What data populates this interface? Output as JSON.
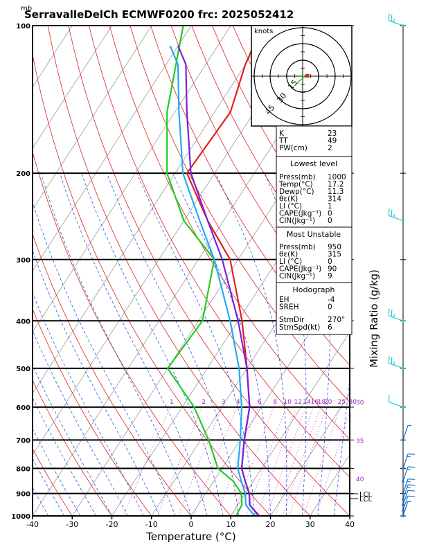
{
  "header": {
    "unit_label": "mb",
    "title": "SerravalleDelCh ECMWF0200 frc: 2025052412"
  },
  "hodograph": {
    "unit_label": "knots",
    "ring_labels": [
      "15",
      "30",
      "45"
    ]
  },
  "indices_box": {
    "rows": [
      {
        "label": "K",
        "value": "23"
      },
      {
        "label": "TT",
        "value": "49"
      },
      {
        "label": "PW(cm)",
        "value": "2"
      }
    ]
  },
  "lowest_level": {
    "heading": "Lowest level",
    "rows": [
      {
        "label": "Press(mb)",
        "value": "1000"
      },
      {
        "label": "Temp(°C)",
        "value": "17.2"
      },
      {
        "label": "Dewp(°C)",
        "value": "11.3"
      },
      {
        "label": "θε(K)",
        "value": "314"
      },
      {
        "label": "LI (°C)",
        "value": "1"
      },
      {
        "label": "CAPE(Jkg⁻¹)",
        "value": "0"
      },
      {
        "label": "CIN(Jkg⁻¹)",
        "value": "0"
      }
    ]
  },
  "most_unstable": {
    "heading": "Most Unstable",
    "rows": [
      {
        "label": "Press(mb)",
        "value": "950"
      },
      {
        "label": "θε(K)",
        "value": "315"
      },
      {
        "label": "LI (°C)",
        "value": "0"
      },
      {
        "label": "CAPE(Jkg⁻¹)",
        "value": "90"
      },
      {
        "label": "CIN(Jkg⁻¹)",
        "value": "9"
      }
    ]
  },
  "hodograph_box": {
    "heading": "Hodograph",
    "rows": [
      {
        "label": "EH",
        "value": "-4"
      },
      {
        "label": "SREH",
        "value": "0"
      },
      {
        "label": "StmDir",
        "value": "270°"
      },
      {
        "label": "StmSpd(kt)",
        "value": "6"
      }
    ]
  },
  "right_axis": {
    "label": "Mixing Ratio (g/kg)",
    "level_labels": [
      "LCL",
      "LCL"
    ],
    "theta_labels": [
      "30",
      "35",
      "40"
    ]
  },
  "chart_data": {
    "type": "line",
    "title": "SerravalleDelCh ECMWF0200 frc: 2025052412",
    "xlabel": "Temperature (°C)",
    "ylabel": "mb",
    "xlim": [
      -40,
      40
    ],
    "ylim": [
      1000,
      100
    ],
    "y_scale": "log",
    "x_ticks": [
      -40,
      -30,
      -20,
      -10,
      0,
      10,
      20,
      30,
      40
    ],
    "y_ticks": [
      100,
      200,
      300,
      400,
      500,
      600,
      700,
      800,
      900,
      1000
    ],
    "mixing_ratio_labels": [
      "1",
      "2",
      "3",
      "4",
      "6",
      "8",
      "10",
      "12",
      "14",
      "16",
      "18",
      "20",
      "25",
      "30"
    ],
    "series": [
      {
        "name": "",
        "color": "#e02020",
        "points": [
          [
            17.2,
            1000
          ],
          [
            13,
            950
          ],
          [
            11,
            900
          ],
          [
            8,
            850
          ],
          [
            5,
            800
          ],
          [
            1,
            700
          ],
          [
            -3,
            600
          ],
          [
            -10,
            500
          ],
          [
            -19,
            400
          ],
          [
            -32,
            300
          ],
          [
            -44,
            250
          ],
          [
            -57,
            200
          ],
          [
            -56,
            150
          ],
          [
            -60,
            120
          ],
          [
            -62,
            100
          ]
        ]
      },
      {
        "name": "",
        "color": "#22cc22",
        "points": [
          [
            11.3,
            1000
          ],
          [
            11,
            950
          ],
          [
            9,
            900
          ],
          [
            5,
            850
          ],
          [
            -1,
            800
          ],
          [
            -8,
            700
          ],
          [
            -17,
            600
          ],
          [
            -30,
            500
          ],
          [
            -29,
            400
          ],
          [
            -36,
            300
          ],
          [
            -50,
            250
          ],
          [
            -62,
            200
          ],
          [
            -72,
            150
          ],
          [
            -82,
            100
          ]
        ]
      },
      {
        "name": "",
        "color": "#7722dd",
        "points": [
          [
            17,
            1000
          ],
          [
            13,
            950
          ],
          [
            11,
            900
          ],
          [
            8,
            850
          ],
          [
            5,
            800
          ],
          [
            1,
            700
          ],
          [
            -3,
            600
          ],
          [
            -10,
            500
          ],
          [
            -20,
            400
          ],
          [
            -34,
            300
          ],
          [
            -44,
            250
          ],
          [
            -56,
            200
          ],
          [
            -67,
            150
          ],
          [
            -75,
            120
          ],
          [
            -80,
            110
          ]
        ]
      },
      {
        "name": "",
        "color": "#22aaee",
        "points": [
          [
            16,
            1000
          ],
          [
            12,
            950
          ],
          [
            10,
            900
          ],
          [
            7,
            850
          ],
          [
            4,
            800
          ],
          [
            0,
            700
          ],
          [
            -5,
            600
          ],
          [
            -12,
            500
          ],
          [
            -22,
            400
          ],
          [
            -36,
            300
          ],
          [
            -46,
            250
          ],
          [
            -58,
            200
          ],
          [
            -69,
            150
          ],
          [
            -77,
            120
          ],
          [
            -82,
            110
          ]
        ]
      }
    ],
    "wind_barbs": [
      {
        "pressure": 1000,
        "speed_kt": 5
      },
      {
        "pressure": 975,
        "speed_kt": 10
      },
      {
        "pressure": 950,
        "speed_kt": 10
      },
      {
        "pressure": 925,
        "speed_kt": 15
      },
      {
        "pressure": 900,
        "speed_kt": 15
      },
      {
        "pressure": 850,
        "speed_kt": 15
      },
      {
        "pressure": 800,
        "speed_kt": 15
      },
      {
        "pressure": 700,
        "speed_kt": 5
      },
      {
        "pressure": 600,
        "speed_kt": 10
      },
      {
        "pressure": 500,
        "speed_kt": 25
      },
      {
        "pressure": 400,
        "speed_kt": 25
      },
      {
        "pressure": 250,
        "speed_kt": 25
      },
      {
        "pressure": 100,
        "speed_kt": 25
      }
    ]
  }
}
